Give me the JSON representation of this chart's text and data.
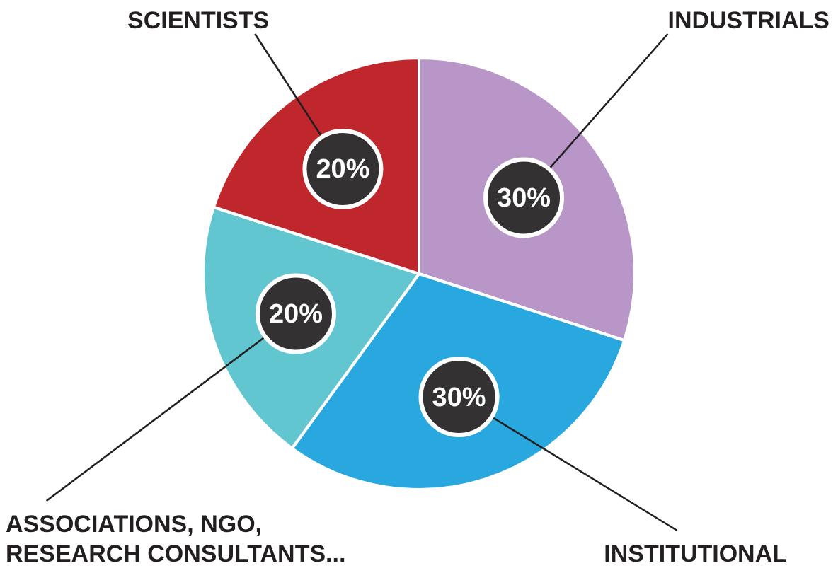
{
  "chart_data": {
    "type": "pie",
    "categories": [
      "INDUSTRIALS",
      "INSTITUTIONAL",
      "ASSOCIATIONS, NGO,\nRESEARCH CONSULTANTS...",
      "SCIENTISTS"
    ],
    "values": [
      30,
      30,
      20,
      20
    ],
    "colors": [
      "#b996c8",
      "#29a8e0",
      "#62c6d0",
      "#c0272d"
    ],
    "value_labels": [
      "30%",
      "30%",
      "20%",
      "20%"
    ],
    "legend": false
  }
}
